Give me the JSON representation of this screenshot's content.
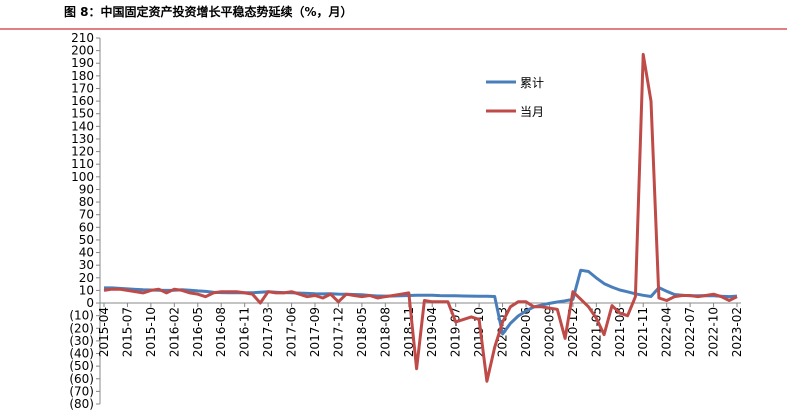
{
  "chart_data": {
    "type": "line",
    "title": "图 8：中国固定资产投资增长平稳态势延续（%，月）",
    "categories": [
      "2015-04",
      null,
      null,
      "2015-07",
      null,
      null,
      "2015-10",
      null,
      null,
      "2016-02",
      null,
      null,
      "2016-05",
      null,
      null,
      "2016-08",
      null,
      null,
      "2016-11",
      null,
      null,
      "2017-03",
      null,
      null,
      "2017-06",
      null,
      null,
      "2017-09",
      null,
      null,
      "2017-12",
      null,
      null,
      "2018-05",
      null,
      null,
      "2018-08",
      null,
      null,
      "2018-11",
      null,
      null,
      "2019-04",
      null,
      null,
      "2019-07",
      null,
      null,
      "2019-10",
      null,
      null,
      "2020-03",
      null,
      null,
      "2020-06",
      null,
      null,
      "2020-09",
      null,
      null,
      "2020-12",
      null,
      null,
      "2021-05",
      null,
      null,
      "2021-08",
      null,
      null,
      "2021-11",
      null,
      null,
      "2022-04",
      null,
      null,
      "2022-07",
      null,
      null,
      "2022-10",
      null,
      null,
      "2023-02"
    ],
    "series": [
      {
        "name": "累计",
        "color": "#4a7ebb",
        "values": [
          12,
          12,
          11.6,
          11.2,
          10.8,
          10.5,
          10.3,
          10.2,
          10,
          10.2,
          10.5,
          10.2,
          9.6,
          9.2,
          8.6,
          8.3,
          8.2,
          8.1,
          8.1,
          8.2,
          8.5,
          8.9,
          8.6,
          8.3,
          8.1,
          7.9,
          7.6,
          7.3,
          7.2,
          7.3,
          7.1,
          7,
          6.8,
          6.5,
          6,
          5.6,
          5.5,
          5.6,
          5.8,
          6,
          6.1,
          6.2,
          6.1,
          5.9,
          5.8,
          5.7,
          5.6,
          5.5,
          5.4,
          5.3,
          5.2,
          -24.5,
          -16.1,
          -10.3,
          -6.3,
          -3.1,
          -1.6,
          -0.3,
          0.8,
          1.8,
          2.9,
          26,
          25,
          19.9,
          15.4,
          12.6,
          10.3,
          8.9,
          7.3,
          6.1,
          5.2,
          12.2,
          9.3,
          6.8,
          6.2,
          5.7,
          5.8,
          5.9,
          5.7,
          5.3,
          5.1,
          5.5
        ]
      },
      {
        "name": "当月",
        "color": "#be4b48",
        "values": [
          10,
          11,
          11,
          10,
          9,
          8,
          10,
          11,
          8,
          11,
          10,
          8,
          7,
          5,
          8,
          9,
          9,
          9,
          8,
          7,
          0,
          9,
          8,
          8,
          9,
          7,
          5,
          6,
          4,
          7,
          1,
          7,
          6,
          5,
          6,
          4,
          5,
          6,
          7,
          8,
          -52,
          2,
          1,
          1,
          1,
          -15,
          -13,
          -11,
          -13,
          -62,
          -35,
          -15,
          -3,
          1,
          1,
          -3,
          -3,
          -4,
          -5,
          -28,
          9,
          3,
          -3,
          -12,
          -25,
          -2,
          -8,
          -10,
          5,
          197,
          160,
          4,
          2,
          5,
          6,
          6,
          5,
          6,
          7,
          5,
          2,
          5
        ]
      }
    ],
    "ylim": [
      -80,
      210
    ],
    "yticks": [
      {
        "value": -80,
        "label": "(80)"
      },
      {
        "value": -70,
        "label": "(70)"
      },
      {
        "value": -60,
        "label": "(60)"
      },
      {
        "value": -50,
        "label": "(50)"
      },
      {
        "value": -40,
        "label": "(40)"
      },
      {
        "value": -30,
        "label": "(30)"
      },
      {
        "value": -20,
        "label": "(20)"
      },
      {
        "value": -10,
        "label": "(10)"
      },
      0,
      10,
      20,
      30,
      40,
      50,
      60,
      70,
      80,
      90,
      100,
      110,
      120,
      130,
      140,
      150,
      160,
      170,
      180,
      190,
      200,
      210
    ]
  }
}
